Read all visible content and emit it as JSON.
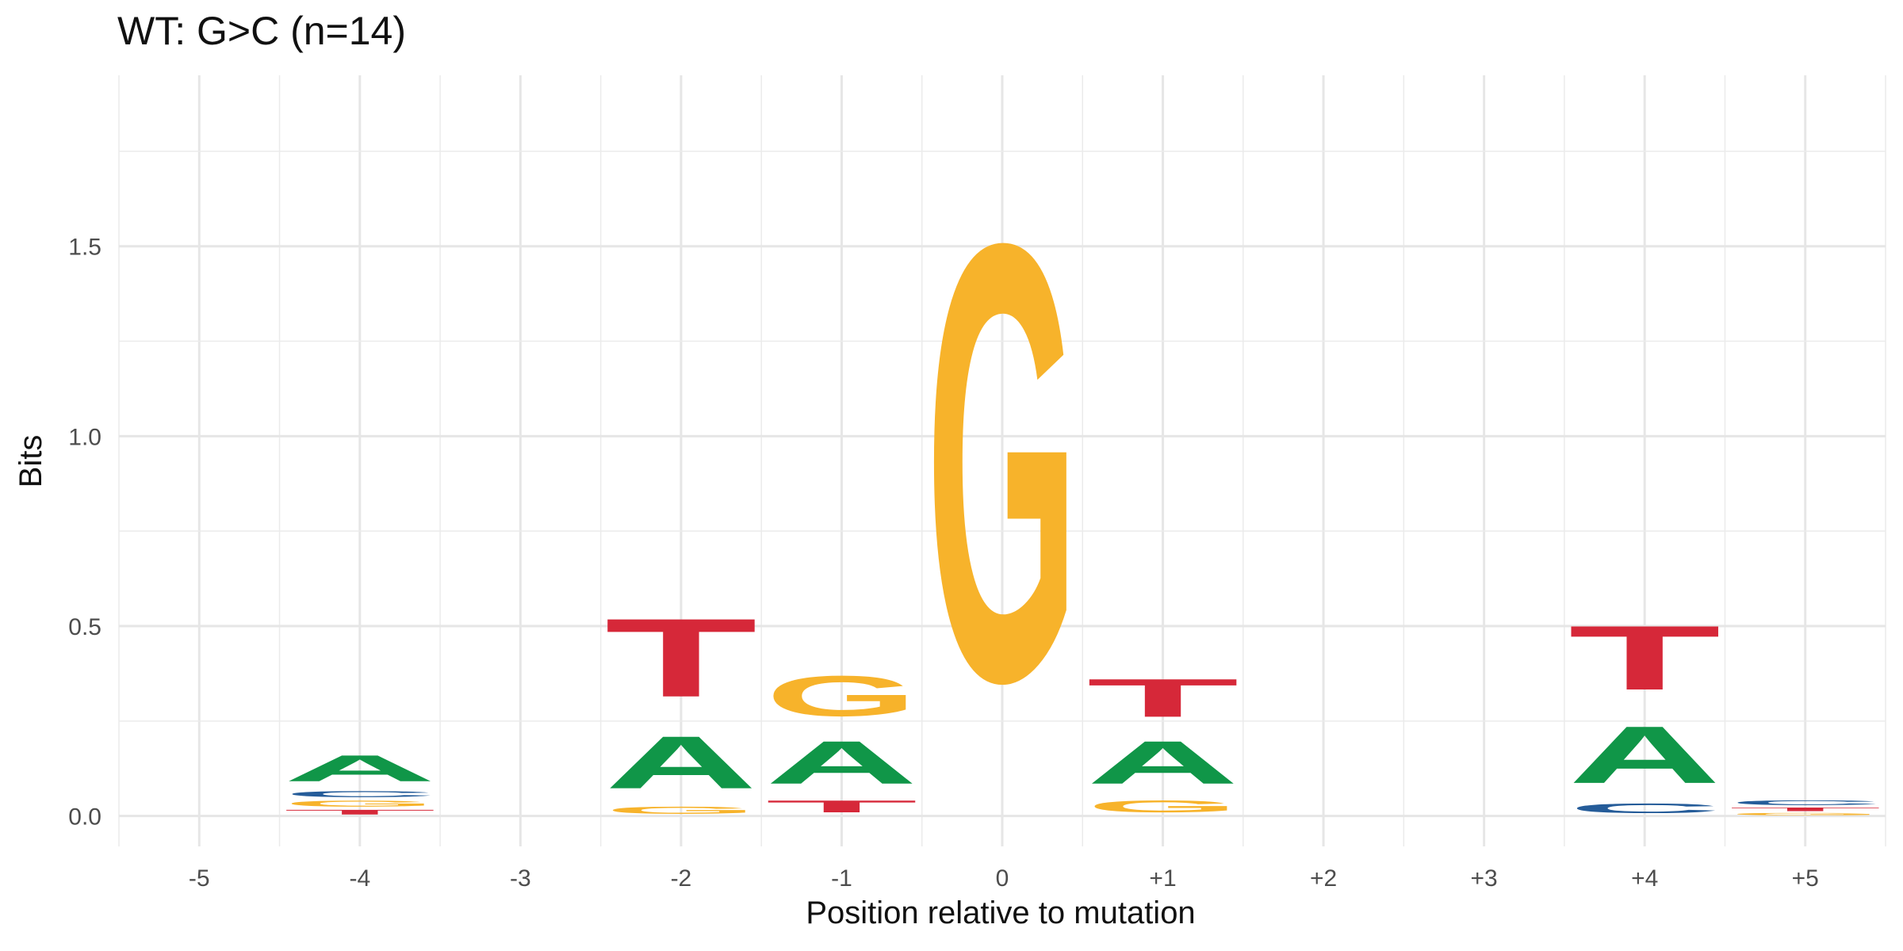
{
  "chart_data": {
    "type": "sequence-logo",
    "title": "WT: G>C (n=14)",
    "xlabel": "Position relative to mutation",
    "ylabel": "Bits",
    "ylim": [
      -0.08,
      1.95
    ],
    "y_ticks": [
      0.0,
      0.5,
      1.0,
      1.5
    ],
    "y_tick_labels": [
      "0.0",
      "0.5",
      "1.0",
      "1.5"
    ],
    "x_tick_labels": [
      "-5",
      "-4",
      "-3",
      "-2",
      "-1",
      "0",
      "+1",
      "+2",
      "+3",
      "+4",
      "+5"
    ],
    "grid": true,
    "colors": {
      "A": "#109648",
      "C": "#255c99",
      "G": "#f7b32b",
      "T": "#d62839"
    },
    "positions": [
      {
        "label": "-5",
        "letters": []
      },
      {
        "label": "-4",
        "letters": [
          {
            "base": "T",
            "bits": 0.02
          },
          {
            "base": "G",
            "bits": 0.025
          },
          {
            "base": "C",
            "bits": 0.025
          },
          {
            "base": "A",
            "bits": 0.11
          }
        ]
      },
      {
        "label": "-3",
        "letters": []
      },
      {
        "label": "-2",
        "letters": [
          {
            "base": "G",
            "bits": 0.03
          },
          {
            "base": "A",
            "bits": 0.22
          },
          {
            "base": "T",
            "bits": 0.33
          }
        ]
      },
      {
        "label": "-1",
        "letters": [
          {
            "base": "T",
            "bits": 0.05
          },
          {
            "base": "A",
            "bits": 0.18
          },
          {
            "base": "G",
            "bits": 0.17
          }
        ]
      },
      {
        "label": "0",
        "letters": [
          {
            "base": "G",
            "bits": 1.84
          }
        ]
      },
      {
        "label": "+1",
        "letters": [
          {
            "base": "G",
            "bits": 0.05
          },
          {
            "base": "A",
            "bits": 0.18
          },
          {
            "base": "T",
            "bits": 0.16
          }
        ]
      },
      {
        "label": "+2",
        "letters": []
      },
      {
        "label": "+3",
        "letters": []
      },
      {
        "label": "+4",
        "letters": [
          {
            "base": "C",
            "bits": 0.04
          },
          {
            "base": "A",
            "bits": 0.24
          },
          {
            "base": "T",
            "bits": 0.27
          }
        ]
      },
      {
        "label": "+5",
        "letters": [
          {
            "base": "G",
            "bits": 0.01
          },
          {
            "base": "T",
            "bits": 0.015
          },
          {
            "base": "C",
            "bits": 0.02
          }
        ]
      }
    ]
  }
}
